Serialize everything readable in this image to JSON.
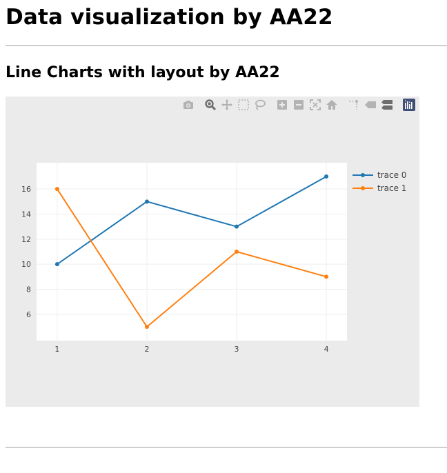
{
  "page": {
    "title": "Data visualization by AA22",
    "section_title": "Line Charts with layout by AA22"
  },
  "modebar": {
    "buttons": [
      "camera-icon",
      "zoom-icon",
      "pan-icon",
      "box-select-icon",
      "lasso-icon",
      "zoom-in-icon",
      "zoom-out-icon",
      "autoscale-icon",
      "reset-axes-icon",
      "spike-lines-icon",
      "hover-closest-icon",
      "hover-compare-icon",
      "plotly-logo-icon"
    ]
  },
  "chart_data": {
    "type": "line",
    "x": [
      1,
      2,
      3,
      4
    ],
    "series": [
      {
        "name": "trace 0",
        "color": "#1f77b4",
        "values": [
          10,
          15,
          13,
          17
        ]
      },
      {
        "name": "trace 1",
        "color": "#ff7f0e",
        "values": [
          16,
          5,
          11,
          9
        ]
      }
    ],
    "xticks": [
      "1",
      "2",
      "3",
      "4"
    ],
    "yticks": [
      "6",
      "8",
      "10",
      "12",
      "14",
      "16"
    ],
    "xlim": [
      0.77,
      4.23
    ],
    "ylim": [
      3.9,
      18.1
    ],
    "plot_bg": "#ffffff",
    "paper_bg": "#ebebeb",
    "grid": true,
    "legend_position": "top-right",
    "markers": true
  }
}
